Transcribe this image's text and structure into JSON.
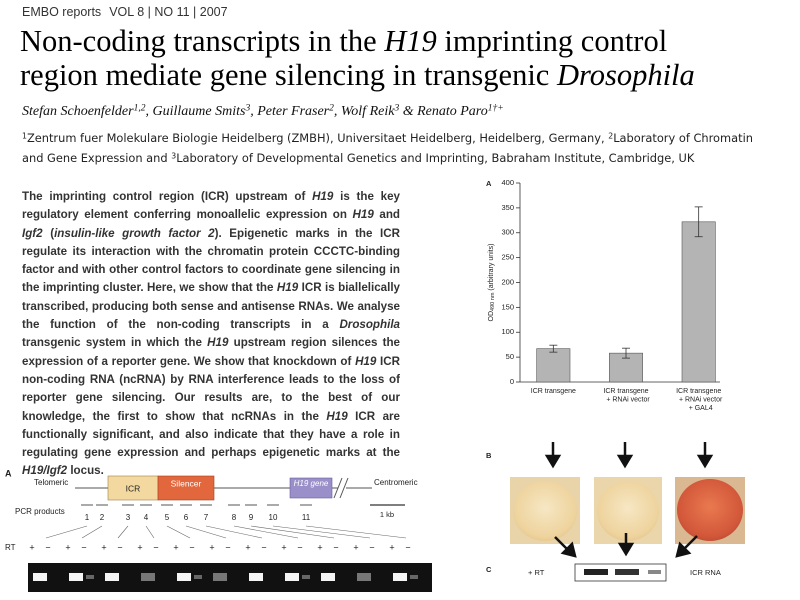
{
  "header": {
    "journal": "EMBO reports",
    "issue": "VOL 8 | NO 11 | 2007"
  },
  "title": {
    "lines": [
      [
        {
          "text": "Non-coding transcripts in the "
        },
        {
          "text": "H19",
          "italic": true
        },
        {
          "text": " imprinting control"
        }
      ],
      [
        {
          "text": "region mediate gene silencing in transgenic "
        },
        {
          "text": "Drosophila",
          "italic": true
        }
      ]
    ]
  },
  "authors": [
    {
      "text": "Stefan Schoenfelder"
    },
    {
      "text": "1,2",
      "sup": true
    },
    {
      "text": ", Guillaume Smits"
    },
    {
      "text": "3",
      "sup": true
    },
    {
      "text": ", Peter Fraser"
    },
    {
      "text": "2",
      "sup": true
    },
    {
      "text": ", Wolf Reik"
    },
    {
      "text": "3",
      "sup": true
    },
    {
      "text": " & Renato Paro"
    },
    {
      "text": "1†+",
      "sup": true
    }
  ],
  "affiliations": [
    [
      {
        "text": "1",
        "sup": true
      },
      {
        "text": "Zentrum fuer Molekulare Biologie Heidelberg (ZMBH), Universitaet Heidelberg, Heidelberg, Germany, "
      },
      {
        "text": "2",
        "sup": true
      },
      {
        "text": "Laboratory of Chromatin"
      }
    ],
    [
      {
        "text": "and Gene Expression and "
      },
      {
        "text": "3",
        "sup": true
      },
      {
        "text": "Laboratory of Developmental Genetics and Imprinting, Babraham Institute, Cambridge, UK"
      }
    ]
  ],
  "abstract": [
    {
      "text": "The imprinting control region (ICR) upstream of "
    },
    {
      "text": "H19",
      "italic": true
    },
    {
      "text": " is the key regulatory element conferring monoallelic expression on "
    },
    {
      "text": "H19",
      "italic": true
    },
    {
      "text": " and "
    },
    {
      "text": "Igf2",
      "italic": true
    },
    {
      "text": " ("
    },
    {
      "text": "insulin-like growth factor 2",
      "italic": true
    },
    {
      "text": "). Epigenetic marks in the ICR regulate its interaction with the chromatin protein CCCTC-binding factor and with other control factors to coordinate gene silencing in the imprinting cluster. Here, we show that the "
    },
    {
      "text": "H19",
      "italic": true
    },
    {
      "text": " ICR is biallelically transcribed, producing both sense and antisense RNAs. We analyse the function of the non-coding transcripts in a "
    },
    {
      "text": "Drosophila",
      "italic": true
    },
    {
      "text": " transgenic system in which the "
    },
    {
      "text": "H19",
      "italic": true
    },
    {
      "text": " upstream region silences the expression of a reporter gene. We show that knockdown of "
    },
    {
      "text": "H19",
      "italic": true
    },
    {
      "text": " ICR non-coding RNA (ncRNA) by RNA interference leads to the loss of reporter gene silencing. Our results are, to the best of our knowledge, the first to show that ncRNAs in the "
    },
    {
      "text": "H19",
      "italic": true
    },
    {
      "text": " ICR are functionally significant, and also indicate that they have a role in regulating gene expression and perhaps epigenetic marks at the "
    },
    {
      "text": "H19/Igf2",
      "italic": true
    },
    {
      "text": " locus."
    }
  ],
  "diagram": {
    "label": "A",
    "telomeric": "Telomeric",
    "icr": "ICR",
    "silencer": "Silencer",
    "h19_gene": "H19 gene",
    "centromeric": "Centromeric",
    "scale": "1 kb",
    "pcr_label": "PCR products",
    "pcr_numbers": [
      1,
      2,
      3,
      4,
      5,
      6,
      7,
      8,
      9,
      10,
      11
    ],
    "rt_label": "RT",
    "rt_signs": [
      "+",
      "−",
      "+",
      "−",
      "+",
      "−",
      "+",
      "−",
      "+",
      "−",
      "+",
      "−",
      "+",
      "−",
      "+",
      "−",
      "+",
      "−",
      "+",
      "−",
      "+",
      "−"
    ]
  },
  "chart_data": {
    "type": "bar",
    "panel": "A",
    "y_label": {
      "main": "OD",
      "sub": "490 nm",
      "rest": " (arbitrary units)"
    },
    "categories": [
      [
        "ICR transgene"
      ],
      [
        "ICR transgene",
        "+ RNAi vector"
      ],
      [
        "ICR transgene",
        "+ RNAi vector",
        "+ GAL4"
      ]
    ],
    "values": [
      67,
      58,
      322
    ],
    "errors": [
      7,
      10,
      30
    ],
    "color": "#b4b4b4",
    "ylim": [
      0,
      400
    ],
    "yticks": [
      0,
      50,
      100,
      150,
      200,
      250,
      300,
      350,
      400
    ]
  },
  "panel_b": {
    "label": "B"
  },
  "panel_c": {
    "label": "C",
    "rt": "+ RT",
    "gel_label": "ICR RNA"
  }
}
